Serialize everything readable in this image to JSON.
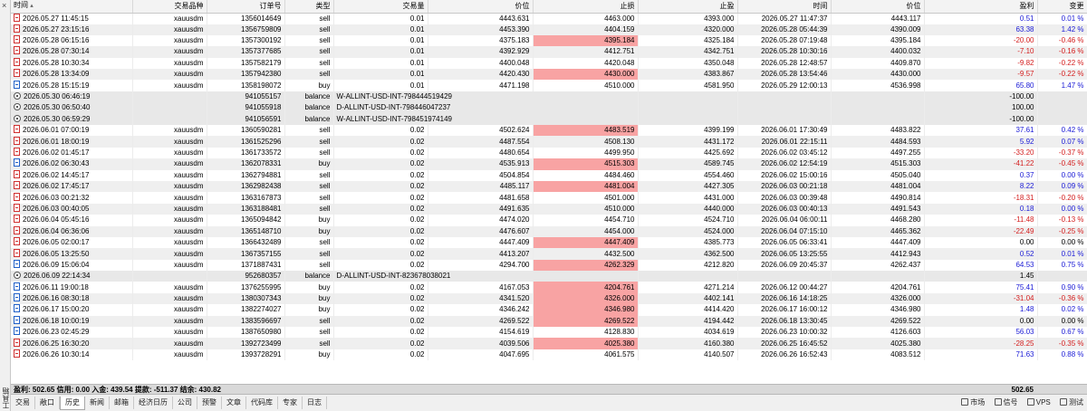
{
  "side": {
    "label": "工具箱",
    "close": "×"
  },
  "columns": [
    "时间",
    "交易品种",
    "订单号",
    "类型",
    "交易量",
    "价位",
    "止损",
    "止盈",
    "时间",
    "价位",
    "盈利",
    "变更"
  ],
  "rows": [
    {
      "kind": "sell",
      "time": "2026.05.27 11:45:15",
      "sym": "xauusdm",
      "order": "1356014649",
      "type": "sell",
      "vol": "0.01",
      "price": "4443.631",
      "sl": "4463.000",
      "tp": "4393.000",
      "ctime": "2026.05.27 11:47:37",
      "cprice": "4443.117",
      "profit": "0.51",
      "chg": "0.01 %",
      "slhit": false,
      "sign": "pos"
    },
    {
      "kind": "sell",
      "time": "2026.05.27 23:15:16",
      "sym": "xauusdm",
      "order": "1356759809",
      "type": "sell",
      "vol": "0.01",
      "price": "4453.390",
      "sl": "4404.159",
      "tp": "4320.000",
      "ctime": "2026.05.28 05:44:39",
      "cprice": "4390.009",
      "profit": "63.38",
      "chg": "1.42 %",
      "slhit": false,
      "sign": "pos"
    },
    {
      "kind": "sell",
      "time": "2026.05.28 06:15:16",
      "sym": "xauusdm",
      "order": "1357300192",
      "type": "sell",
      "vol": "0.01",
      "price": "4375.183",
      "sl": "4395.184",
      "tp": "4325.184",
      "ctime": "2026.05.28 07:19:48",
      "cprice": "4395.184",
      "profit": "-20.00",
      "chg": "-0.46 %",
      "slhit": true,
      "sign": "neg"
    },
    {
      "kind": "sell",
      "time": "2026.05.28 07:30:14",
      "sym": "xauusdm",
      "order": "1357377685",
      "type": "sell",
      "vol": "0.01",
      "price": "4392.929",
      "sl": "4412.751",
      "tp": "4342.751",
      "ctime": "2026.05.28 10:30:16",
      "cprice": "4400.032",
      "profit": "-7.10",
      "chg": "-0.16 %",
      "slhit": false,
      "sign": "neg"
    },
    {
      "kind": "sell",
      "time": "2026.05.28 10:30:34",
      "sym": "xauusdm",
      "order": "1357582179",
      "type": "sell",
      "vol": "0.01",
      "price": "4400.048",
      "sl": "4420.048",
      "tp": "4350.048",
      "ctime": "2026.05.28 12:48:57",
      "cprice": "4409.870",
      "profit": "-9.82",
      "chg": "-0.22 %",
      "slhit": false,
      "sign": "neg"
    },
    {
      "kind": "sell",
      "time": "2026.05.28 13:34:09",
      "sym": "xauusdm",
      "order": "1357942380",
      "type": "sell",
      "vol": "0.01",
      "price": "4420.430",
      "sl": "4430.000",
      "tp": "4383.867",
      "ctime": "2026.05.28 13:54:46",
      "cprice": "4430.000",
      "profit": "-9.57",
      "chg": "-0.22 %",
      "slhit": true,
      "sign": "neg"
    },
    {
      "kind": "buy",
      "time": "2026.05.28 15:15:19",
      "sym": "xauusdm",
      "order": "1358198072",
      "type": "buy",
      "vol": "0.01",
      "price": "4471.198",
      "sl": "4510.000",
      "tp": "4581.950",
      "ctime": "2026.05.29 12:00:13",
      "cprice": "4536.998",
      "profit": "65.80",
      "chg": "1.47 %",
      "slhit": false,
      "sign": "pos"
    },
    {
      "kind": "balance",
      "time": "2026.05.30 06:46:19",
      "order": "941055157",
      "type": "balance",
      "comment": "W-ALLINT-USD-INT-798444519429",
      "profit": "-100.00"
    },
    {
      "kind": "balance",
      "time": "2026.05.30 06:50:40",
      "order": "941055918",
      "type": "balance",
      "comment": "D-ALLINT-USD-INT-798446047237",
      "profit": "100.00"
    },
    {
      "kind": "balance",
      "time": "2026.05.30 06:59:29",
      "order": "941056591",
      "type": "balance",
      "comment": "W-ALLINT-USD-INT-798451974149",
      "profit": "-100.00"
    },
    {
      "kind": "sell",
      "time": "2026.06.01 07:00:19",
      "sym": "xauusdm",
      "order": "1360590281",
      "type": "sell",
      "vol": "0.02",
      "price": "4502.624",
      "sl": "4483.519",
      "tp": "4399.199",
      "ctime": "2026.06.01 17:30:49",
      "cprice": "4483.822",
      "profit": "37.61",
      "chg": "0.42 %",
      "slhit": true,
      "sign": "pos"
    },
    {
      "kind": "sell",
      "time": "2026.06.01 18:00:19",
      "sym": "xauusdm",
      "order": "1361525296",
      "type": "sell",
      "vol": "0.02",
      "price": "4487.554",
      "sl": "4508.130",
      "tp": "4431.172",
      "ctime": "2026.06.01 22:15:11",
      "cprice": "4484.593",
      "profit": "5.92",
      "chg": "0.07 %",
      "slhit": false,
      "sign": "pos"
    },
    {
      "kind": "sell",
      "time": "2026.06.02 01:45:17",
      "sym": "xauusdm",
      "order": "1361733572",
      "type": "sell",
      "vol": "0.02",
      "price": "4480.654",
      "sl": "4499.950",
      "tp": "4425.692",
      "ctime": "2026.06.02 03:45:12",
      "cprice": "4497.255",
      "profit": "-33.20",
      "chg": "-0.37 %",
      "slhit": false,
      "sign": "neg"
    },
    {
      "kind": "buy",
      "time": "2026.06.02 06:30:43",
      "sym": "xauusdm",
      "order": "1362078331",
      "type": "buy",
      "vol": "0.02",
      "price": "4535.913",
      "sl": "4515.303",
      "tp": "4589.745",
      "ctime": "2026.06.02 12:54:19",
      "cprice": "4515.303",
      "profit": "-41.22",
      "chg": "-0.45 %",
      "slhit": true,
      "sign": "neg"
    },
    {
      "kind": "sell",
      "time": "2026.06.02 14:45:17",
      "sym": "xauusdm",
      "order": "1362794881",
      "type": "sell",
      "vol": "0.02",
      "price": "4504.854",
      "sl": "4484.460",
      "tp": "4554.460",
      "ctime": "2026.06.02 15:00:16",
      "cprice": "4505.040",
      "profit": "0.37",
      "chg": "0.00 %",
      "slhit": false,
      "sign": "pos"
    },
    {
      "kind": "sell",
      "time": "2026.06.02 17:45:17",
      "sym": "xauusdm",
      "order": "1362982438",
      "type": "sell",
      "vol": "0.02",
      "price": "4485.117",
      "sl": "4481.004",
      "tp": "4427.305",
      "ctime": "2026.06.03 00:21:18",
      "cprice": "4481.004",
      "profit": "8.22",
      "chg": "0.09 %",
      "slhit": true,
      "sign": "pos"
    },
    {
      "kind": "sell",
      "time": "2026.06.03 00:21:32",
      "sym": "xauusdm",
      "order": "1363167873",
      "type": "sell",
      "vol": "0.02",
      "price": "4481.658",
      "sl": "4501.000",
      "tp": "4431.000",
      "ctime": "2026.06.03 00:39:48",
      "cprice": "4490.814",
      "profit": "-18.31",
      "chg": "-0.20 %",
      "slhit": false,
      "sign": "neg"
    },
    {
      "kind": "sell",
      "time": "2026.06.03 00:40:05",
      "sym": "xauusdm",
      "order": "1363188481",
      "type": "sell",
      "vol": "0.02",
      "price": "4491.635",
      "sl": "4510.000",
      "tp": "4440.000",
      "ctime": "2026.06.03 00:40:13",
      "cprice": "4491.543",
      "profit": "0.18",
      "chg": "0.00 %",
      "slhit": false,
      "sign": "pos"
    },
    {
      "kind": "sell",
      "time": "2026.06.04 05:45:16",
      "sym": "xauusdm",
      "order": "1365094842",
      "type": "buy",
      "vol": "0.02",
      "price": "4474.020",
      "sl": "4454.710",
      "tp": "4524.710",
      "ctime": "2026.06.04 06:00:11",
      "cprice": "4468.280",
      "profit": "-11.48",
      "chg": "-0.13 %",
      "slhit": false,
      "sign": "neg"
    },
    {
      "kind": "sell",
      "time": "2026.06.04 06:36:06",
      "sym": "xauusdm",
      "order": "1365148710",
      "type": "buy",
      "vol": "0.02",
      "price": "4476.607",
      "sl": "4454.000",
      "tp": "4524.000",
      "ctime": "2026.06.04 07:15:10",
      "cprice": "4465.362",
      "profit": "-22.49",
      "chg": "-0.25 %",
      "slhit": false,
      "sign": "neg"
    },
    {
      "kind": "sell",
      "time": "2026.06.05 02:00:17",
      "sym": "xauusdm",
      "order": "1366432489",
      "type": "sell",
      "vol": "0.02",
      "price": "4447.409",
      "sl": "4447.409",
      "tp": "4385.773",
      "ctime": "2026.06.05 06:33:41",
      "cprice": "4447.409",
      "profit": "0.00",
      "chg": "0.00 %",
      "slhit": true,
      "sign": "none"
    },
    {
      "kind": "sell",
      "time": "2026.06.05 13:25:50",
      "sym": "xauusdm",
      "order": "1367357155",
      "type": "sell",
      "vol": "0.02",
      "price": "4413.207",
      "sl": "4432.500",
      "tp": "4362.500",
      "ctime": "2026.06.05 13:25:55",
      "cprice": "4412.943",
      "profit": "0.52",
      "chg": "0.01 %",
      "slhit": false,
      "sign": "pos"
    },
    {
      "kind": "buy",
      "time": "2026.06.09 15:06:04",
      "sym": "xauusdm",
      "order": "1371887431",
      "type": "sell",
      "vol": "0.02",
      "price": "4294.700",
      "sl": "4262.329",
      "tp": "4212.820",
      "ctime": "2026.06.09 20:45:37",
      "cprice": "4262.437",
      "profit": "64.53",
      "chg": "0.75 %",
      "slhit": true,
      "sign": "pos"
    },
    {
      "kind": "balance",
      "time": "2026.06.09 22:14:34",
      "order": "952680357",
      "type": "balance",
      "comment": "D-ALLINT-USD-INT-823678038021",
      "profit": "1.45"
    },
    {
      "kind": "buy",
      "time": "2026.06.11 19:00:18",
      "sym": "xauusdm",
      "order": "1376255995",
      "type": "buy",
      "vol": "0.02",
      "price": "4167.053",
      "sl": "4204.761",
      "tp": "4271.214",
      "ctime": "2026.06.12 00:44:27",
      "cprice": "4204.761",
      "profit": "75.41",
      "chg": "0.90 %",
      "slhit": true,
      "sign": "pos"
    },
    {
      "kind": "buy",
      "time": "2026.06.16 08:30:18",
      "sym": "xauusdm",
      "order": "1380307343",
      "type": "buy",
      "vol": "0.02",
      "price": "4341.520",
      "sl": "4326.000",
      "tp": "4402.141",
      "ctime": "2026.06.16 14:18:25",
      "cprice": "4326.000",
      "profit": "-31.04",
      "chg": "-0.36 %",
      "slhit": true,
      "sign": "neg"
    },
    {
      "kind": "buy",
      "time": "2026.06.17 15:00:20",
      "sym": "xauusdm",
      "order": "1382274027",
      "type": "buy",
      "vol": "0.02",
      "price": "4346.242",
      "sl": "4346.980",
      "tp": "4414.420",
      "ctime": "2026.06.17 16:00:12",
      "cprice": "4346.980",
      "profit": "1.48",
      "chg": "0.02 %",
      "slhit": true,
      "sign": "pos"
    },
    {
      "kind": "buy",
      "time": "2026.06.18 10:00:19",
      "sym": "xauusdm",
      "order": "1383596697",
      "type": "sell",
      "vol": "0.02",
      "price": "4269.522",
      "sl": "4269.522",
      "tp": "4194.442",
      "ctime": "2026.06.18 13:30:45",
      "cprice": "4269.522",
      "profit": "0.00",
      "chg": "0.00 %",
      "slhit": true,
      "sign": "none"
    },
    {
      "kind": "buy",
      "time": "2026.06.23 02:45:29",
      "sym": "xauusdm",
      "order": "1387650980",
      "type": "sell",
      "vol": "0.02",
      "price": "4154.619",
      "sl": "4128.830",
      "tp": "4034.619",
      "ctime": "2026.06.23 10:00:32",
      "cprice": "4126.603",
      "profit": "56.03",
      "chg": "0.67 %",
      "slhit": false,
      "sign": "pos"
    },
    {
      "kind": "sell",
      "time": "2026.06.25 16:30:20",
      "sym": "xauusdm",
      "order": "1392723499",
      "type": "sell",
      "vol": "0.02",
      "price": "4039.506",
      "sl": "4025.380",
      "tp": "4160.380",
      "ctime": "2026.06.25 16:45:52",
      "cprice": "4025.380",
      "profit": "-28.25",
      "chg": "-0.35 %",
      "slhit": true,
      "sign": "neg"
    },
    {
      "kind": "sell",
      "time": "2026.06.26 10:30:14",
      "sym": "xauusdm",
      "order": "1393728291",
      "type": "buy",
      "vol": "0.02",
      "price": "4047.695",
      "sl": "4061.575",
      "tp": "4140.507",
      "ctime": "2026.06.26 16:52:43",
      "cprice": "4083.512",
      "profit": "71.63",
      "chg": "0.88 %",
      "slhit": false,
      "sign": "pos"
    }
  ],
  "summary": {
    "text": "盈利: 502.65  信用: 0.00  入金: 439.54  提款: -511.37  结余: 430.82",
    "total": "502.65"
  },
  "tabs": [
    "交易",
    "敞口",
    "历史",
    "新闻",
    "邮箱",
    "经济日历",
    "公司",
    "预警",
    "文章",
    "代码库",
    "专家",
    "日志"
  ],
  "active_tab": "历史",
  "status": {
    "market": "市场",
    "signals": "信号",
    "vps": "VPS",
    "tester": "测试"
  }
}
